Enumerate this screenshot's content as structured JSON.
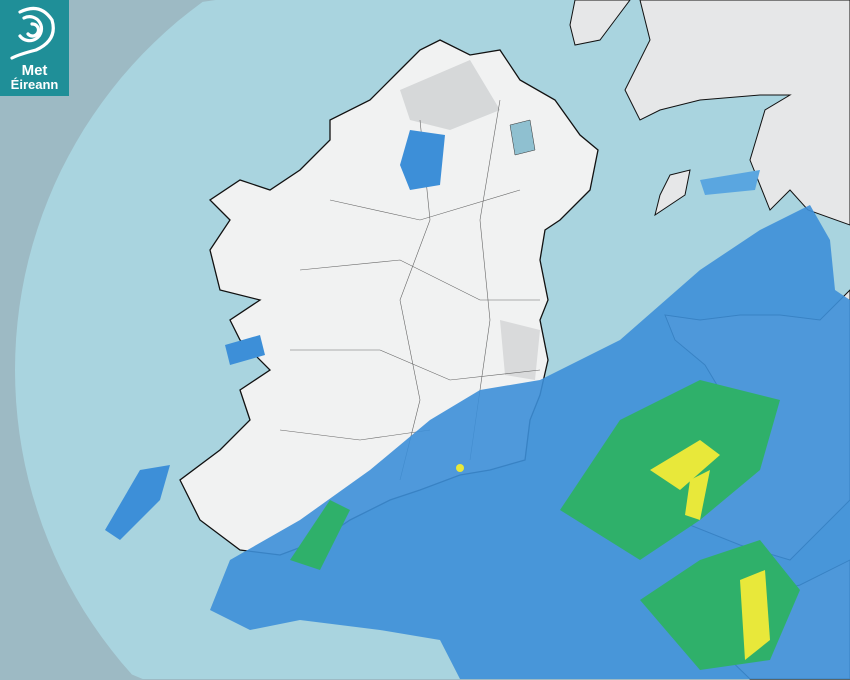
{
  "logo": {
    "line1": "Met",
    "line2": "Éireann"
  },
  "colors": {
    "outside_coverage": "#9dbac4",
    "radar_coverage": "#a9d4df",
    "land": "#f1f2f2",
    "rain_light": "#3d8fd8",
    "rain_moderate": "#2fb06a",
    "rain_heavy": "#e8e83a"
  }
}
